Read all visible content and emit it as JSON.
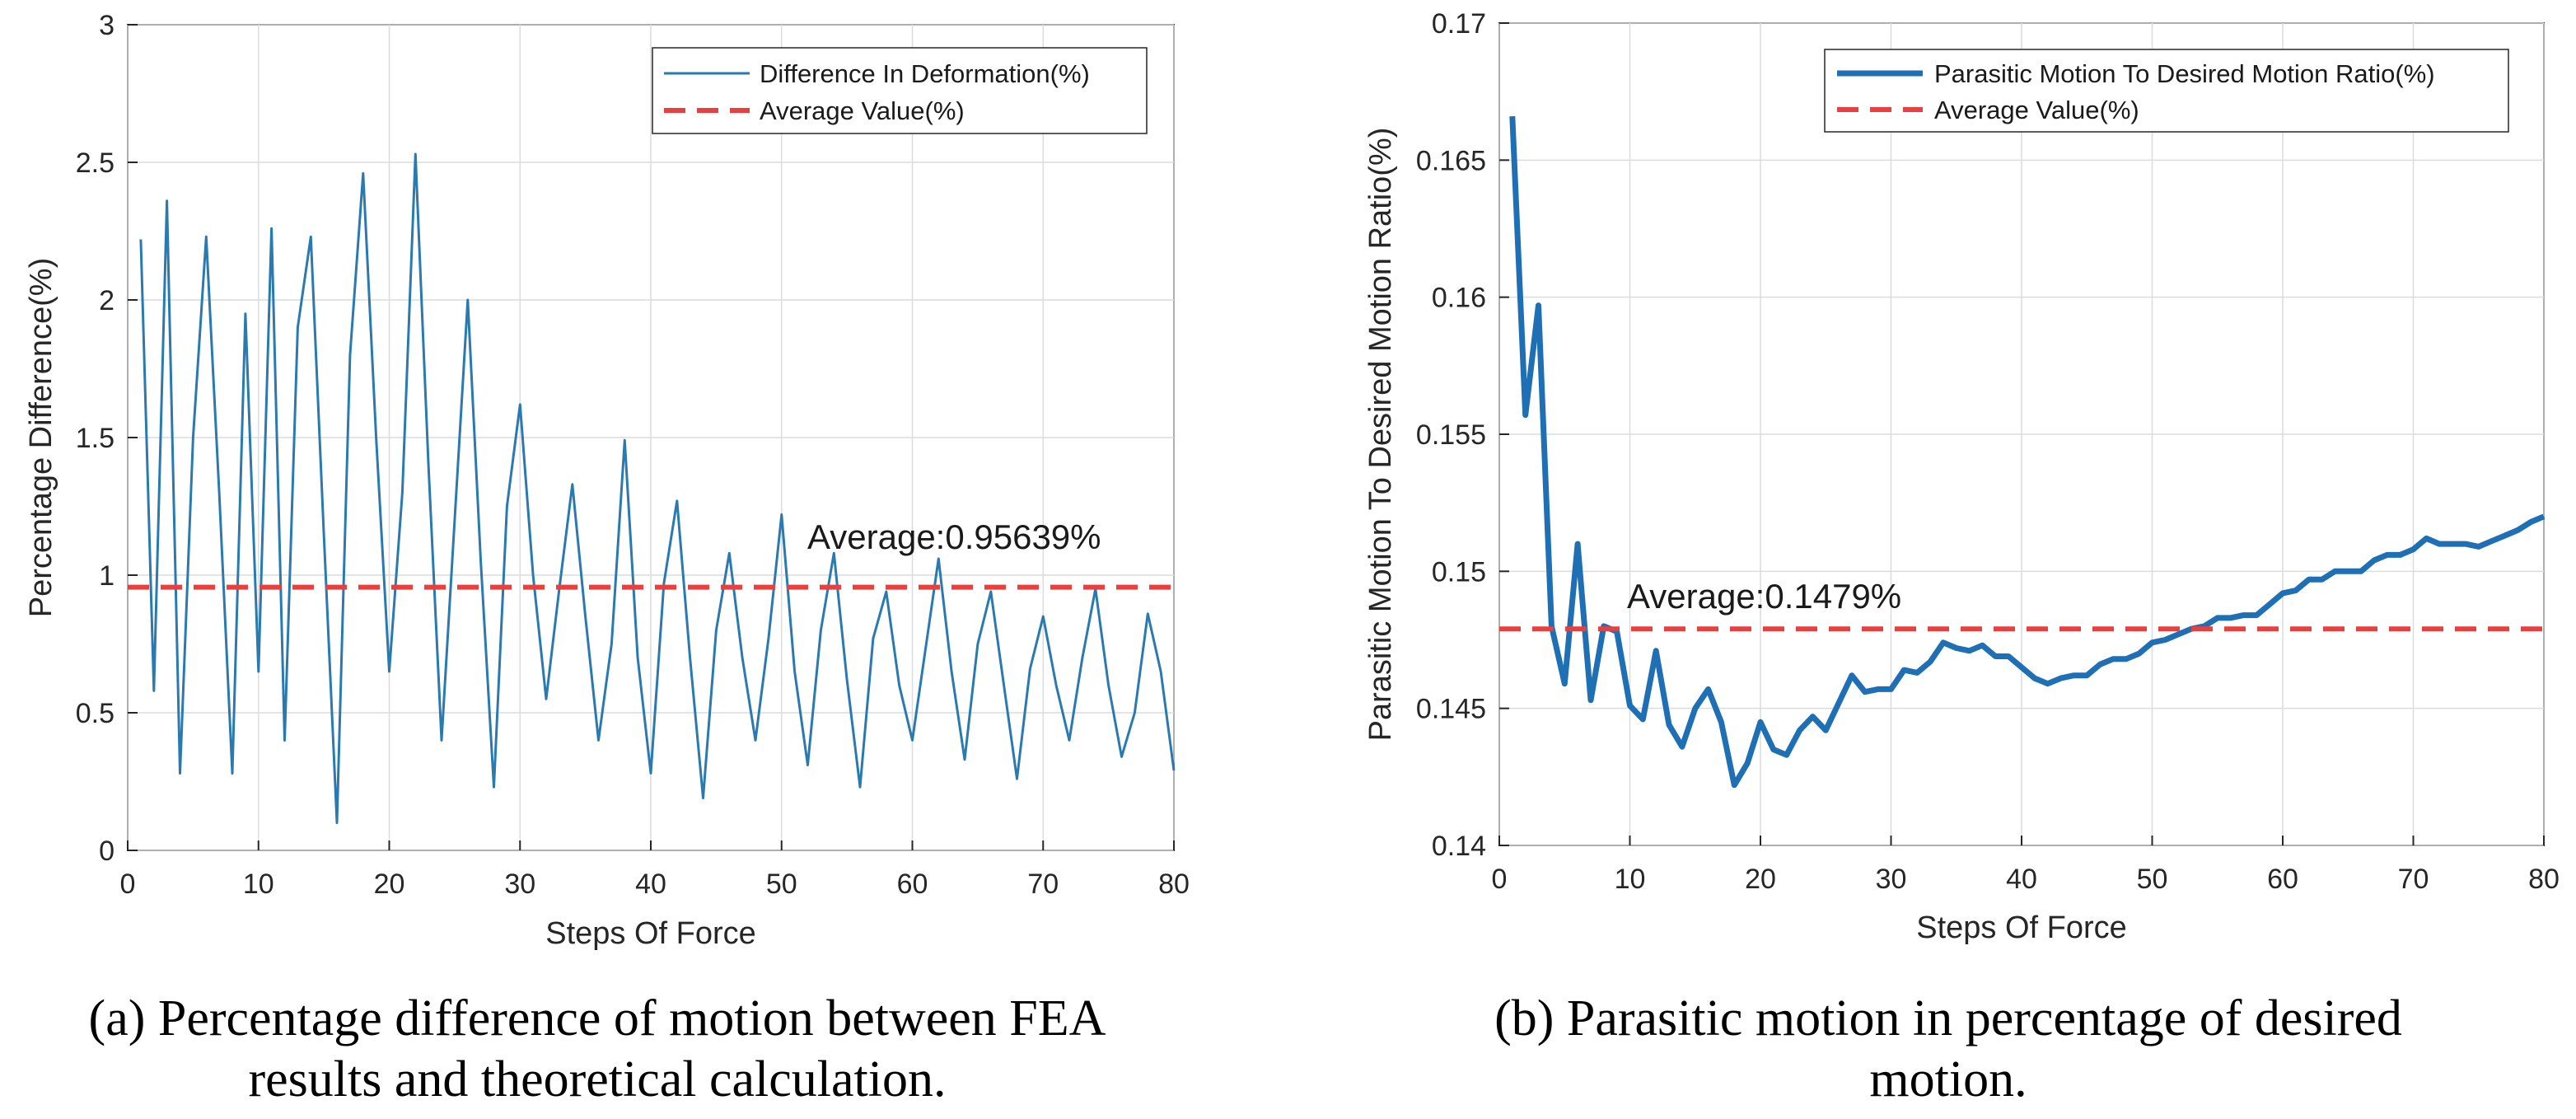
{
  "chart_data": [
    {
      "type": "line",
      "xlabel": "Steps Of Force",
      "ylabel": "Percentage Difference(%)",
      "xlim": [
        0,
        80
      ],
      "ylim": [
        0,
        3
      ],
      "xticks": [
        0,
        10,
        20,
        30,
        40,
        50,
        60,
        70,
        80
      ],
      "yticks": [
        0,
        0.5,
        1,
        1.5,
        2,
        2.5,
        3
      ],
      "ytick_labels": [
        "0",
        "0.5",
        "1",
        "1.5",
        "2",
        "2.5",
        "3"
      ],
      "grid": true,
      "legend_position": "top-right",
      "series": [
        {
          "name": "Difference In Deformation(%)",
          "color": "#2a7ab0",
          "style": "solid",
          "x": [
            1,
            2,
            3,
            4,
            5,
            6,
            7,
            8,
            9,
            10,
            11,
            12,
            13,
            14,
            15,
            16,
            17,
            18,
            19,
            20,
            21,
            22,
            23,
            24,
            25,
            26,
            27,
            28,
            29,
            30,
            31,
            32,
            33,
            34,
            35,
            36,
            37,
            38,
            39,
            40,
            41,
            42,
            43,
            44,
            45,
            46,
            47,
            48,
            49,
            50,
            51,
            52,
            53,
            54,
            55,
            56,
            57,
            58,
            59,
            60,
            61,
            62,
            63,
            64,
            65,
            66,
            67,
            68,
            69,
            70,
            71,
            72,
            73,
            74,
            75,
            76,
            77,
            78,
            79,
            80
          ],
          "y": [
            2.22,
            0.58,
            2.36,
            0.28,
            1.5,
            2.23,
            1.3,
            0.28,
            1.95,
            0.65,
            2.26,
            0.4,
            1.9,
            2.23,
            1.15,
            0.1,
            1.8,
            2.46,
            1.5,
            0.65,
            1.3,
            2.53,
            1.4,
            0.4,
            1.2,
            2.0,
            1.05,
            0.23,
            1.25,
            1.62,
            1.0,
            0.55,
            0.95,
            1.33,
            0.85,
            0.4,
            0.75,
            1.49,
            0.7,
            0.28,
            0.97,
            1.27,
            0.7,
            0.19,
            0.8,
            1.08,
            0.7,
            0.4,
            0.77,
            1.22,
            0.65,
            0.31,
            0.8,
            1.08,
            0.62,
            0.23,
            0.77,
            0.94,
            0.6,
            0.4,
            0.73,
            1.06,
            0.65,
            0.33,
            0.75,
            0.94,
            0.6,
            0.26,
            0.66,
            0.85,
            0.6,
            0.4,
            0.7,
            0.95,
            0.6,
            0.34,
            0.5,
            0.86,
            0.65,
            0.29
          ]
        },
        {
          "name": "Average Value(%)",
          "color": "#e8403e",
          "style": "dashed",
          "x": [
            0,
            80
          ],
          "y": [
            0.95639,
            0.95639
          ]
        }
      ],
      "annotation": {
        "text": "Average:0.95639%",
        "x": 52,
        "y": 1.1
      },
      "caption": [
        "(a) Percentage difference of motion between FEA",
        "results and theoretical calculation."
      ]
    },
    {
      "type": "line",
      "xlabel": "Steps Of Force",
      "ylabel": "Parasitic Motion To Desired Motion Ratio(%)",
      "xlim": [
        0,
        80
      ],
      "ylim": [
        0.14,
        0.17
      ],
      "xticks": [
        0,
        10,
        20,
        30,
        40,
        50,
        60,
        70,
        80
      ],
      "yticks": [
        0.14,
        0.145,
        0.15,
        0.155,
        0.16,
        0.165,
        0.17
      ],
      "ytick_labels": [
        "0.14",
        "0.145",
        "0.15",
        "0.155",
        "0.16",
        "0.165",
        "0.17"
      ],
      "grid": true,
      "legend_position": "top-right",
      "series": [
        {
          "name": "Parasitic Motion To Desired Motion Ratio(%)",
          "color": "#1f6fb4",
          "style": "solid",
          "x": [
            1,
            2,
            3,
            4,
            5,
            6,
            7,
            8,
            9,
            10,
            11,
            12,
            13,
            14,
            15,
            16,
            17,
            18,
            19,
            20,
            21,
            22,
            23,
            24,
            25,
            26,
            27,
            28,
            29,
            30,
            31,
            32,
            33,
            34,
            35,
            36,
            37,
            38,
            39,
            40,
            41,
            42,
            43,
            44,
            45,
            46,
            47,
            48,
            49,
            50,
            51,
            52,
            53,
            54,
            55,
            56,
            57,
            58,
            59,
            60,
            61,
            62,
            63,
            64,
            65,
            66,
            67,
            68,
            69,
            70,
            71,
            72,
            73,
            74,
            75,
            76,
            77,
            78,
            79,
            80
          ],
          "y": [
            0.1666,
            0.1557,
            0.1597,
            0.148,
            0.1459,
            0.151,
            0.1453,
            0.148,
            0.1478,
            0.1451,
            0.1446,
            0.1471,
            0.1444,
            0.1436,
            0.145,
            0.1457,
            0.1445,
            0.1422,
            0.143,
            0.1445,
            0.1435,
            0.1433,
            0.1442,
            0.1447,
            0.1442,
            0.1452,
            0.1462,
            0.1456,
            0.1457,
            0.1457,
            0.1464,
            0.1463,
            0.1467,
            0.1474,
            0.1472,
            0.1471,
            0.1473,
            0.1469,
            0.1469,
            0.1465,
            0.1461,
            0.1459,
            0.1461,
            0.1462,
            0.1462,
            0.1466,
            0.1468,
            0.1468,
            0.147,
            0.1474,
            0.1475,
            0.1477,
            0.1479,
            0.148,
            0.1483,
            0.1483,
            0.1484,
            0.1484,
            0.1488,
            0.1492,
            0.1493,
            0.1497,
            0.1497,
            0.15,
            0.15,
            0.15,
            0.1504,
            0.1506,
            0.1506,
            0.1508,
            0.1512,
            0.151,
            0.151,
            0.151,
            0.1509,
            0.1511,
            0.1513,
            0.1515,
            0.1518,
            0.152
          ]
        },
        {
          "name": "Average Value(%)",
          "color": "#e8403e",
          "style": "dashed",
          "x": [
            0,
            80
          ],
          "y": [
            0.1479,
            0.1479
          ]
        }
      ],
      "annotation": {
        "text": "Average:0.1479%",
        "x": 10,
        "y": 0.1487
      },
      "caption": [
        "(b) Parasitic motion in percentage of desired",
        "motion."
      ]
    }
  ]
}
